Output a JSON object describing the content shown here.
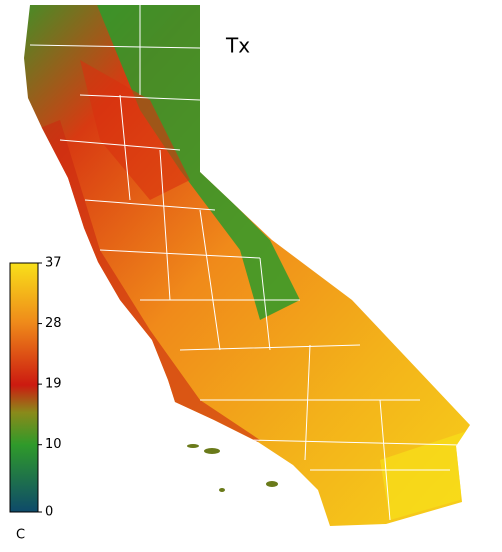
{
  "map": {
    "title": "Tx",
    "colorbar": {
      "lim": [
        0,
        37
      ],
      "ticks": [
        0,
        10,
        19,
        28,
        37
      ],
      "unit": "C"
    }
  }
}
